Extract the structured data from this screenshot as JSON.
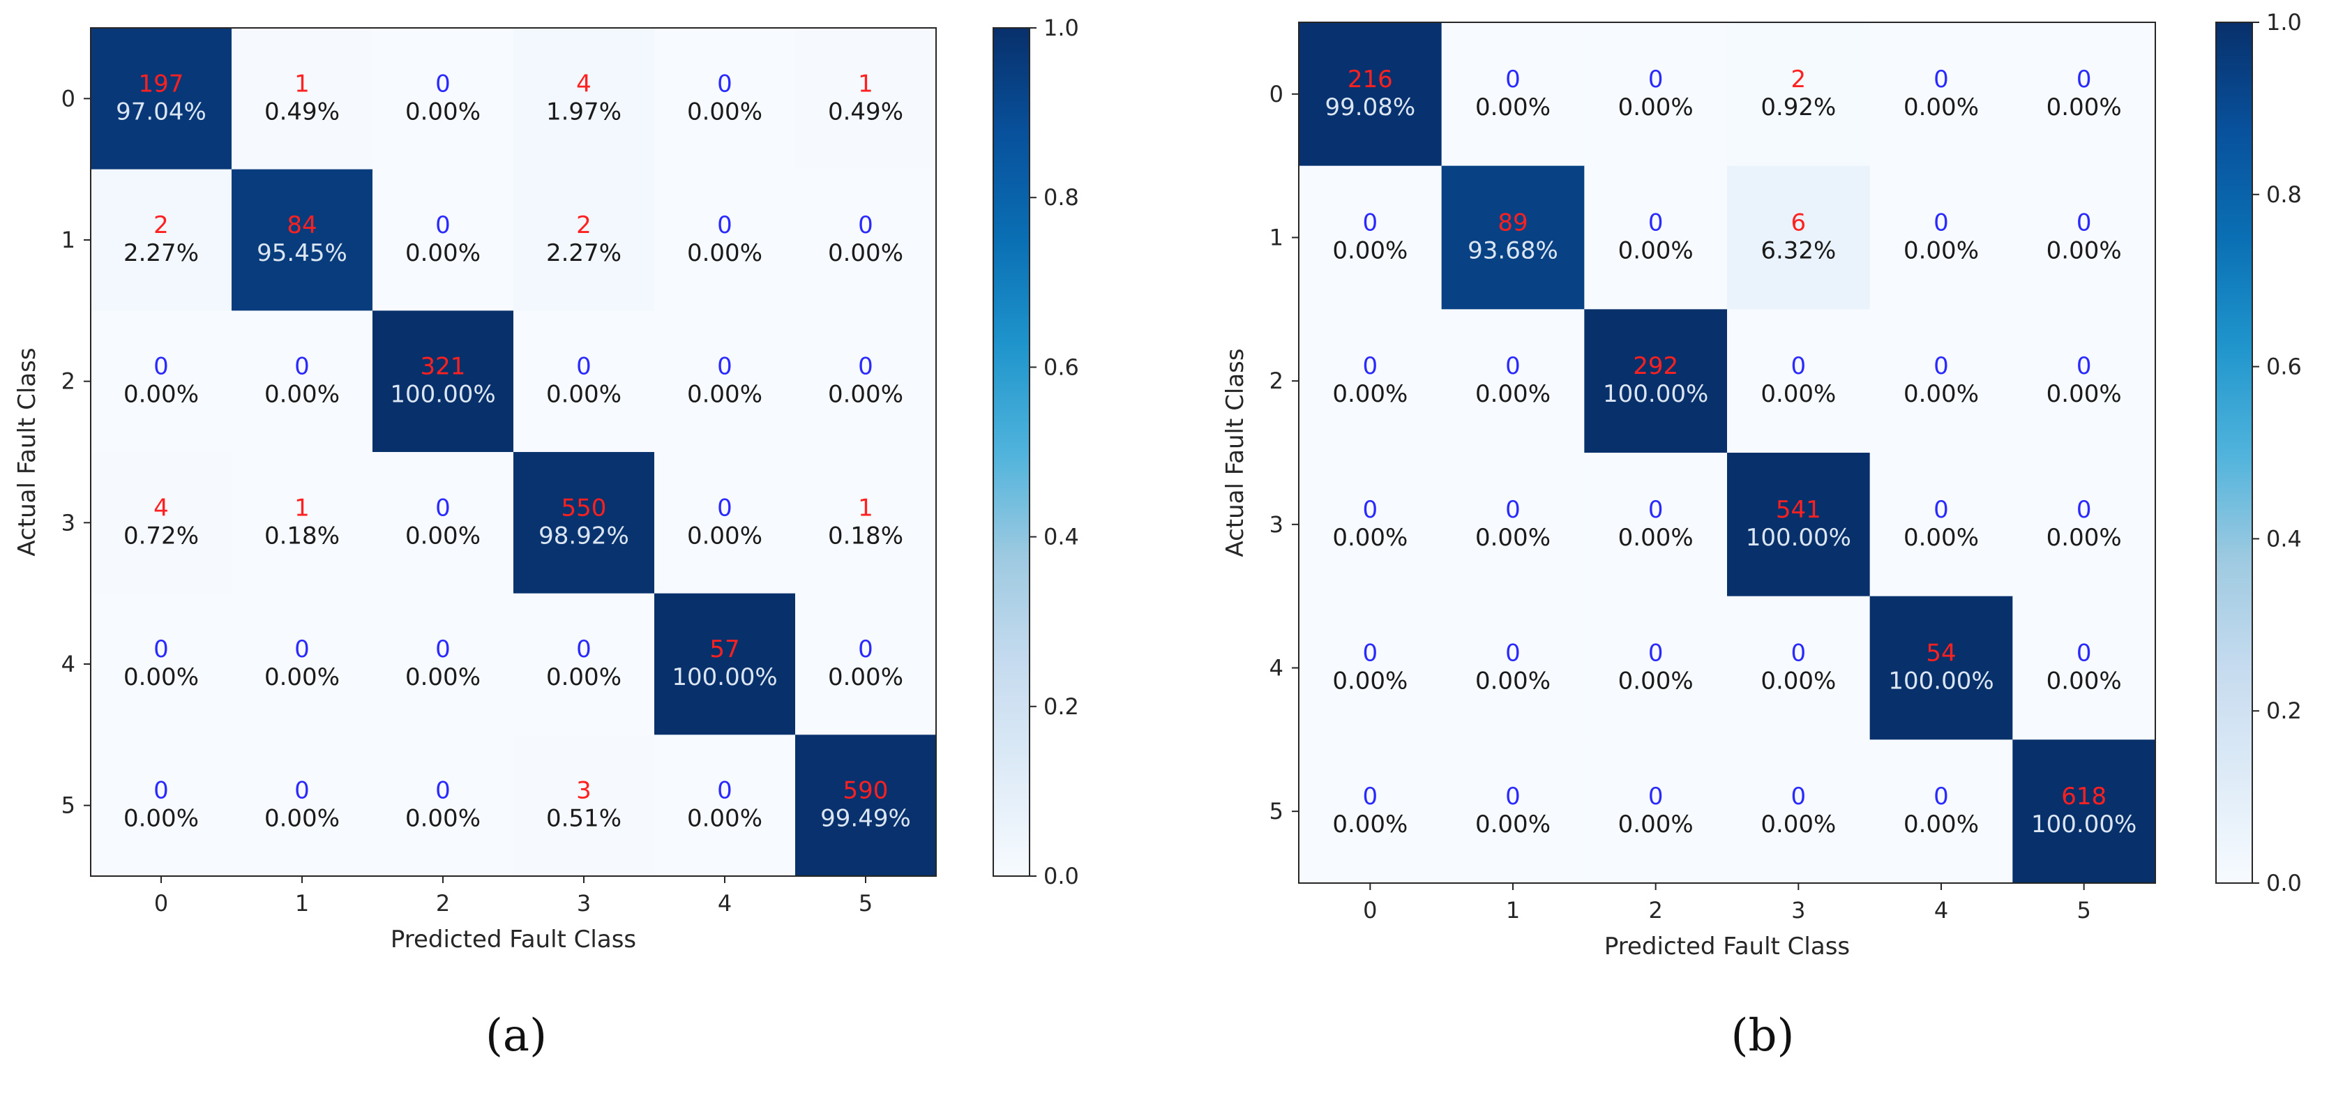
{
  "colors": {
    "count_text": "#ff2020",
    "zero_count_text": "#2a2aff",
    "pct_dark_text": "#1a1a1a",
    "pct_light_text": "#dbe6f2",
    "axis": "#262626"
  },
  "chart_data": [
    {
      "type": "heatmap",
      "panel_label": "(a)",
      "xlabel": "Predicted Fault Class",
      "ylabel": "Actual Fault Class",
      "x_ticks": [
        "0",
        "1",
        "2",
        "3",
        "4",
        "5"
      ],
      "y_ticks": [
        "0",
        "1",
        "2",
        "3",
        "4",
        "5"
      ],
      "colorbar": {
        "colormap": "Blues",
        "range": [
          0.0,
          1.0
        ],
        "ticks": [
          "0.0",
          "0.2",
          "0.4",
          "0.6",
          "0.8",
          "1.0"
        ]
      },
      "counts": [
        [
          197,
          1,
          0,
          4,
          0,
          1
        ],
        [
          2,
          84,
          0,
          2,
          0,
          0
        ],
        [
          0,
          0,
          321,
          0,
          0,
          0
        ],
        [
          4,
          1,
          0,
          550,
          0,
          1
        ],
        [
          0,
          0,
          0,
          0,
          57,
          0
        ],
        [
          0,
          0,
          0,
          3,
          0,
          590
        ]
      ],
      "percent_labels": [
        [
          "97.04%",
          "0.49%",
          "0.00%",
          "1.97%",
          "0.00%",
          "0.49%"
        ],
        [
          "2.27%",
          "95.45%",
          "0.00%",
          "2.27%",
          "0.00%",
          "0.00%"
        ],
        [
          "0.00%",
          "0.00%",
          "100.00%",
          "0.00%",
          "0.00%",
          "0.00%"
        ],
        [
          "0.72%",
          "0.18%",
          "0.00%",
          "98.92%",
          "0.00%",
          "0.18%"
        ],
        [
          "0.00%",
          "0.00%",
          "0.00%",
          "0.00%",
          "100.00%",
          "0.00%"
        ],
        [
          "0.00%",
          "0.00%",
          "0.00%",
          "0.51%",
          "0.00%",
          "99.49%"
        ]
      ],
      "values": [
        [
          0.9704,
          0.0049,
          0.0,
          0.0197,
          0.0,
          0.0049
        ],
        [
          0.0227,
          0.9545,
          0.0,
          0.0227,
          0.0,
          0.0
        ],
        [
          0.0,
          0.0,
          1.0,
          0.0,
          0.0,
          0.0
        ],
        [
          0.0072,
          0.0018,
          0.0,
          0.9892,
          0.0,
          0.0018
        ],
        [
          0.0,
          0.0,
          0.0,
          0.0,
          1.0,
          0.0
        ],
        [
          0.0,
          0.0,
          0.0,
          0.0051,
          0.0,
          0.9949
        ]
      ]
    },
    {
      "type": "heatmap",
      "panel_label": "(b)",
      "xlabel": "Predicted Fault Class",
      "ylabel": "Actual Fault Class",
      "x_ticks": [
        "0",
        "1",
        "2",
        "3",
        "4",
        "5"
      ],
      "y_ticks": [
        "0",
        "1",
        "2",
        "3",
        "4",
        "5"
      ],
      "colorbar": {
        "colormap": "Blues",
        "range": [
          0.0,
          1.0
        ],
        "ticks": [
          "0.0",
          "0.2",
          "0.4",
          "0.6",
          "0.8",
          "1.0"
        ]
      },
      "counts": [
        [
          216,
          0,
          0,
          2,
          0,
          0
        ],
        [
          0,
          89,
          0,
          6,
          0,
          0
        ],
        [
          0,
          0,
          292,
          0,
          0,
          0
        ],
        [
          0,
          0,
          0,
          541,
          0,
          0
        ],
        [
          0,
          0,
          0,
          0,
          54,
          0
        ],
        [
          0,
          0,
          0,
          0,
          0,
          618
        ]
      ],
      "percent_labels": [
        [
          "99.08%",
          "0.00%",
          "0.00%",
          "0.92%",
          "0.00%",
          "0.00%"
        ],
        [
          "0.00%",
          "93.68%",
          "0.00%",
          "6.32%",
          "0.00%",
          "0.00%"
        ],
        [
          "0.00%",
          "0.00%",
          "100.00%",
          "0.00%",
          "0.00%",
          "0.00%"
        ],
        [
          "0.00%",
          "0.00%",
          "0.00%",
          "100.00%",
          "0.00%",
          "0.00%"
        ],
        [
          "0.00%",
          "0.00%",
          "0.00%",
          "0.00%",
          "100.00%",
          "0.00%"
        ],
        [
          "0.00%",
          "0.00%",
          "0.00%",
          "0.00%",
          "0.00%",
          "100.00%"
        ]
      ],
      "values": [
        [
          0.9908,
          0.0,
          0.0,
          0.0092,
          0.0,
          0.0
        ],
        [
          0.0,
          0.9368,
          0.0,
          0.0632,
          0.0,
          0.0
        ],
        [
          0.0,
          0.0,
          1.0,
          0.0,
          0.0,
          0.0
        ],
        [
          0.0,
          0.0,
          0.0,
          1.0,
          0.0,
          0.0
        ],
        [
          0.0,
          0.0,
          0.0,
          0.0,
          1.0,
          0.0
        ],
        [
          0.0,
          0.0,
          0.0,
          0.0,
          0.0,
          1.0
        ]
      ]
    }
  ]
}
